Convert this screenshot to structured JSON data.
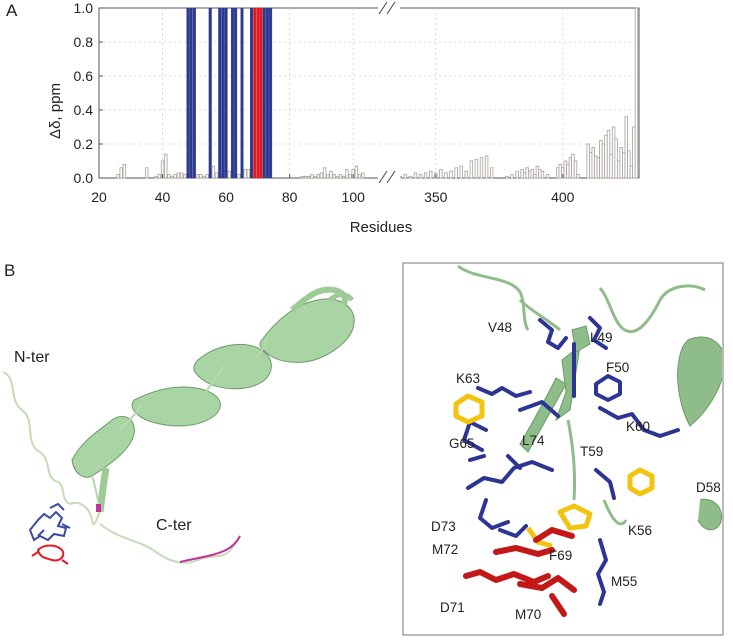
{
  "panels": {
    "a": "A",
    "b": "B"
  },
  "chart_data": {
    "type": "bar",
    "ylabel": "Δδ, ppm",
    "xlabel": "Residues",
    "ylim": [
      0,
      1.0
    ],
    "yticks": [
      "0.0",
      "0.2",
      "0.4",
      "0.6",
      "0.8",
      "1.0"
    ],
    "yticks_values": [
      0,
      0.2,
      0.4,
      0.6,
      0.8,
      1.0
    ],
    "grid": true,
    "axis_break": "between 100 and 350",
    "segments": [
      {
        "xlim": [
          20,
          110
        ],
        "xticks": [
          20,
          40,
          60,
          80,
          100
        ]
      },
      {
        "xlim": [
          330,
          430
        ],
        "xticks": [
          350,
          400
        ]
      }
    ],
    "colors": {
      "default": "#a89f9a",
      "blue": "#2b3990",
      "red": "#e31b23"
    },
    "bars": [
      {
        "x": 26,
        "y": 0.02
      },
      {
        "x": 27,
        "y": 0.06
      },
      {
        "x": 28,
        "y": 0.08
      },
      {
        "x": 35,
        "y": 0.06
      },
      {
        "x": 38,
        "y": 0.01
      },
      {
        "x": 39,
        "y": 0.02
      },
      {
        "x": 40,
        "y": 0.1
      },
      {
        "x": 41,
        "y": 0.14
      },
      {
        "x": 42,
        "y": 0.02
      },
      {
        "x": 43,
        "y": 0.01
      },
      {
        "x": 44,
        "y": 0.02
      },
      {
        "x": 45,
        "y": 0.03
      },
      {
        "x": 46,
        "y": 0.03
      },
      {
        "x": 47,
        "y": 0.02
      },
      {
        "x": 48,
        "y": 1.0,
        "color": "blue"
      },
      {
        "x": 49,
        "y": 1.0,
        "color": "blue"
      },
      {
        "x": 50,
        "y": 1.0,
        "color": "blue"
      },
      {
        "x": 51,
        "y": 0.02
      },
      {
        "x": 52,
        "y": 0.02
      },
      {
        "x": 53,
        "y": 0.01
      },
      {
        "x": 54,
        "y": 0.02
      },
      {
        "x": 55,
        "y": 1.0,
        "color": "blue"
      },
      {
        "x": 56,
        "y": 0.07
      },
      {
        "x": 57,
        "y": 0.03
      },
      {
        "x": 58,
        "y": 1.0,
        "color": "blue"
      },
      {
        "x": 59,
        "y": 1.0,
        "color": "blue"
      },
      {
        "x": 60,
        "y": 1.0,
        "color": "blue"
      },
      {
        "x": 61,
        "y": 0.04
      },
      {
        "x": 62,
        "y": 1.0,
        "color": "blue"
      },
      {
        "x": 63,
        "y": 1.0,
        "color": "blue"
      },
      {
        "x": 64,
        "y": 0.02
      },
      {
        "x": 65,
        "y": 1.0,
        "color": "blue"
      },
      {
        "x": 66,
        "y": 0.05
      },
      {
        "x": 67,
        "y": 0.05
      },
      {
        "x": 68,
        "y": 1.0,
        "color": "blue"
      },
      {
        "x": 69,
        "y": 1.0,
        "color": "red"
      },
      {
        "x": 70,
        "y": 1.0,
        "color": "red"
      },
      {
        "x": 71,
        "y": 1.0,
        "color": "red"
      },
      {
        "x": 72,
        "y": 1.0,
        "color": "blue"
      },
      {
        "x": 73,
        "y": 1.0,
        "color": "blue"
      },
      {
        "x": 74,
        "y": 1.0,
        "color": "blue"
      },
      {
        "x": 84,
        "y": 0.01
      },
      {
        "x": 85,
        "y": 0.01
      },
      {
        "x": 86,
        "y": 0.01
      },
      {
        "x": 87,
        "y": 0.02
      },
      {
        "x": 88,
        "y": 0.01
      },
      {
        "x": 89,
        "y": 0.02
      },
      {
        "x": 90,
        "y": 0.03
      },
      {
        "x": 91,
        "y": 0.06
      },
      {
        "x": 92,
        "y": 0.02
      },
      {
        "x": 93,
        "y": 0.04
      },
      {
        "x": 94,
        "y": 0.02
      },
      {
        "x": 95,
        "y": 0.01
      },
      {
        "x": 96,
        "y": 0.02
      },
      {
        "x": 97,
        "y": 0.01
      },
      {
        "x": 98,
        "y": 0.05
      },
      {
        "x": 99,
        "y": 0.02
      },
      {
        "x": 100,
        "y": 0.05
      },
      {
        "x": 101,
        "y": 0.07
      },
      {
        "x": 102,
        "y": 0.02
      },
      {
        "x": 103,
        "y": 0.03
      },
      {
        "x": 336,
        "y": 0.01
      },
      {
        "x": 338,
        "y": 0.02
      },
      {
        "x": 340,
        "y": 0.01
      },
      {
        "x": 342,
        "y": 0.03
      },
      {
        "x": 344,
        "y": 0.02
      },
      {
        "x": 346,
        "y": 0.03
      },
      {
        "x": 348,
        "y": 0.04
      },
      {
        "x": 350,
        "y": 0.03
      },
      {
        "x": 352,
        "y": 0.05
      },
      {
        "x": 354,
        "y": 0.03
      },
      {
        "x": 356,
        "y": 0.04
      },
      {
        "x": 358,
        "y": 0.06
      },
      {
        "x": 360,
        "y": 0.07
      },
      {
        "x": 362,
        "y": 0.04
      },
      {
        "x": 364,
        "y": 0.1
      },
      {
        "x": 366,
        "y": 0.11
      },
      {
        "x": 368,
        "y": 0.12
      },
      {
        "x": 370,
        "y": 0.13
      },
      {
        "x": 372,
        "y": 0.06
      },
      {
        "x": 378,
        "y": 0.01
      },
      {
        "x": 380,
        "y": 0.02
      },
      {
        "x": 382,
        "y": 0.04
      },
      {
        "x": 384,
        "y": 0.05
      },
      {
        "x": 385,
        "y": 0.03
      },
      {
        "x": 386,
        "y": 0.06
      },
      {
        "x": 387,
        "y": 0.04
      },
      {
        "x": 388,
        "y": 0.05
      },
      {
        "x": 389,
        "y": 0.02
      },
      {
        "x": 390,
        "y": 0.07
      },
      {
        "x": 391,
        "y": 0.05
      },
      {
        "x": 392,
        "y": 0.04
      },
      {
        "x": 394,
        "y": 0.02
      },
      {
        "x": 398,
        "y": 0.06
      },
      {
        "x": 399,
        "y": 0.08
      },
      {
        "x": 400,
        "y": 0.06
      },
      {
        "x": 401,
        "y": 0.1
      },
      {
        "x": 402,
        "y": 0.08
      },
      {
        "x": 403,
        "y": 0.12
      },
      {
        "x": 404,
        "y": 0.14
      },
      {
        "x": 405,
        "y": 0.1
      },
      {
        "x": 406,
        "y": 0.02
      },
      {
        "x": 410,
        "y": 0.2
      },
      {
        "x": 411,
        "y": 0.15
      },
      {
        "x": 412,
        "y": 0.18
      },
      {
        "x": 413,
        "y": 0.13
      },
      {
        "x": 414,
        "y": 0.12
      },
      {
        "x": 415,
        "y": 0.22
      },
      {
        "x": 416,
        "y": 0.2
      },
      {
        "x": 417,
        "y": 0.25
      },
      {
        "x": 418,
        "y": 0.28
      },
      {
        "x": 419,
        "y": 0.14
      },
      {
        "x": 420,
        "y": 0.3
      },
      {
        "x": 421,
        "y": 0.23
      },
      {
        "x": 422,
        "y": 0.1
      },
      {
        "x": 423,
        "y": 0.18
      },
      {
        "x": 424,
        "y": 0.15
      },
      {
        "x": 425,
        "y": 0.36
      },
      {
        "x": 426,
        "y": 0.16
      },
      {
        "x": 427,
        "y": 0.07
      },
      {
        "x": 428,
        "y": 0.3
      },
      {
        "x": 429,
        "y": 1.0
      }
    ]
  },
  "structure_full": {
    "labels": {
      "nter": "N-ter",
      "cter": "C-ter"
    },
    "colors": {
      "helix": "#a9d4a4",
      "loop": "#c4dcb8",
      "blue": "#3b4a9c",
      "red": "#e31b23",
      "magenta": "#c4309a"
    }
  },
  "structure_zoom": {
    "labels": {
      "V48": "V48",
      "L49": "L49",
      "F50": "F50",
      "K63": "K63",
      "K60": "K60",
      "T59": "T59",
      "D58": "D58",
      "G65": "G65",
      "L74": "L74",
      "D73": "D73",
      "K56": "K56",
      "F69": "F69",
      "M72": "M72",
      "M55": "M55",
      "D71": "D71",
      "M70": "M70"
    },
    "colors": {
      "cartoon": "#8ebd8a",
      "blue": "#2d3594",
      "red": "#c41717",
      "yellow": "#f2c40f"
    }
  }
}
